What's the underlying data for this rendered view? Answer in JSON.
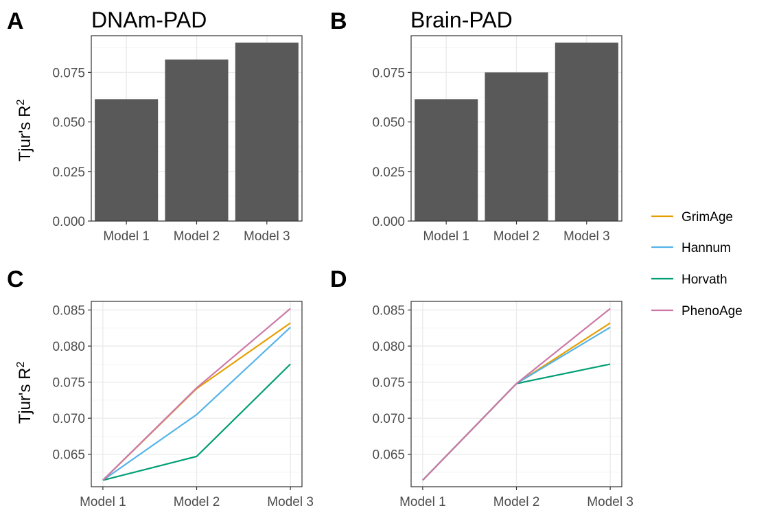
{
  "chart_data": [
    {
      "panel": "A",
      "type": "bar",
      "title": "DNAm-PAD",
      "xlabel": "",
      "ylabel": "Tjur's R",
      "ylabel_superscript": "2",
      "categories": [
        "Model 1",
        "Model 2",
        "Model 3"
      ],
      "values": [
        0.0615,
        0.0815,
        0.09
      ],
      "ylim": [
        0,
        0.0935
      ],
      "yticks": [
        0.0,
        0.025,
        0.05,
        0.075
      ],
      "ytick_labels": [
        "0.000",
        "0.025",
        "0.050",
        "0.075"
      ],
      "bar_color": "#595959",
      "grid": true
    },
    {
      "panel": "B",
      "type": "bar",
      "title": "Brain-PAD",
      "xlabel": "",
      "ylabel": "",
      "categories": [
        "Model 1",
        "Model 2",
        "Model 3"
      ],
      "values": [
        0.0615,
        0.075,
        0.09
      ],
      "ylim": [
        0,
        0.0935
      ],
      "yticks": [
        0.0,
        0.025,
        0.05,
        0.075
      ],
      "ytick_labels": [
        "0.000",
        "0.025",
        "0.050",
        "0.075"
      ],
      "bar_color": "#595959",
      "grid": true
    },
    {
      "panel": "C",
      "type": "line",
      "title": "",
      "xlabel": "",
      "ylabel": "Tjur's R",
      "ylabel_superscript": "2",
      "categories": [
        "Model 1",
        "Model 2",
        "Model 3"
      ],
      "ylim": [
        0.0605,
        0.0862
      ],
      "yticks": [
        0.065,
        0.07,
        0.075,
        0.08,
        0.085
      ],
      "ytick_labels": [
        "0.065",
        "0.070",
        "0.075",
        "0.080",
        "0.085"
      ],
      "series": [
        {
          "name": "GrimAge",
          "values": [
            0.0614,
            0.0741,
            0.0832
          ],
          "color": "#E69F00"
        },
        {
          "name": "Hannum",
          "values": [
            0.0614,
            0.0705,
            0.0826
          ],
          "color": "#56B4E9"
        },
        {
          "name": "Horvath",
          "values": [
            0.0614,
            0.0647,
            0.0775
          ],
          "color": "#009E73"
        },
        {
          "name": "PhenoAge",
          "values": [
            0.0614,
            0.0742,
            0.0852
          ],
          "color": "#CC79A7"
        }
      ],
      "grid": true
    },
    {
      "panel": "D",
      "type": "line",
      "title": "",
      "xlabel": "",
      "ylabel": "",
      "categories": [
        "Model 1",
        "Model 2",
        "Model 3"
      ],
      "ylim": [
        0.0605,
        0.0862
      ],
      "yticks": [
        0.065,
        0.07,
        0.075,
        0.08,
        0.085
      ],
      "ytick_labels": [
        "0.065",
        "0.070",
        "0.075",
        "0.080",
        "0.085"
      ],
      "series": [
        {
          "name": "GrimAge",
          "values": [
            0.0614,
            0.0748,
            0.0832
          ],
          "color": "#E69F00"
        },
        {
          "name": "Hannum",
          "values": [
            0.0614,
            0.0748,
            0.0826
          ],
          "color": "#56B4E9"
        },
        {
          "name": "Horvath",
          "values": [
            0.0614,
            0.0748,
            0.0775
          ],
          "color": "#009E73"
        },
        {
          "name": "PhenoAge",
          "values": [
            0.0614,
            0.0748,
            0.0852
          ],
          "color": "#CC79A7"
        }
      ],
      "grid": true
    }
  ],
  "legend": {
    "placement": "right",
    "entries": [
      {
        "label": "GrimAge",
        "color": "#E69F00"
      },
      {
        "label": "Hannum",
        "color": "#56B4E9"
      },
      {
        "label": "Horvath",
        "color": "#009E73"
      },
      {
        "label": "PhenoAge",
        "color": "#CC79A7"
      }
    ]
  },
  "colors": {
    "panel_border": "#333333",
    "grid_major": "#ebebeb",
    "grid_minor": "#f5f5f5",
    "tick_text": "#4d4d4d",
    "bar": "#595959"
  }
}
